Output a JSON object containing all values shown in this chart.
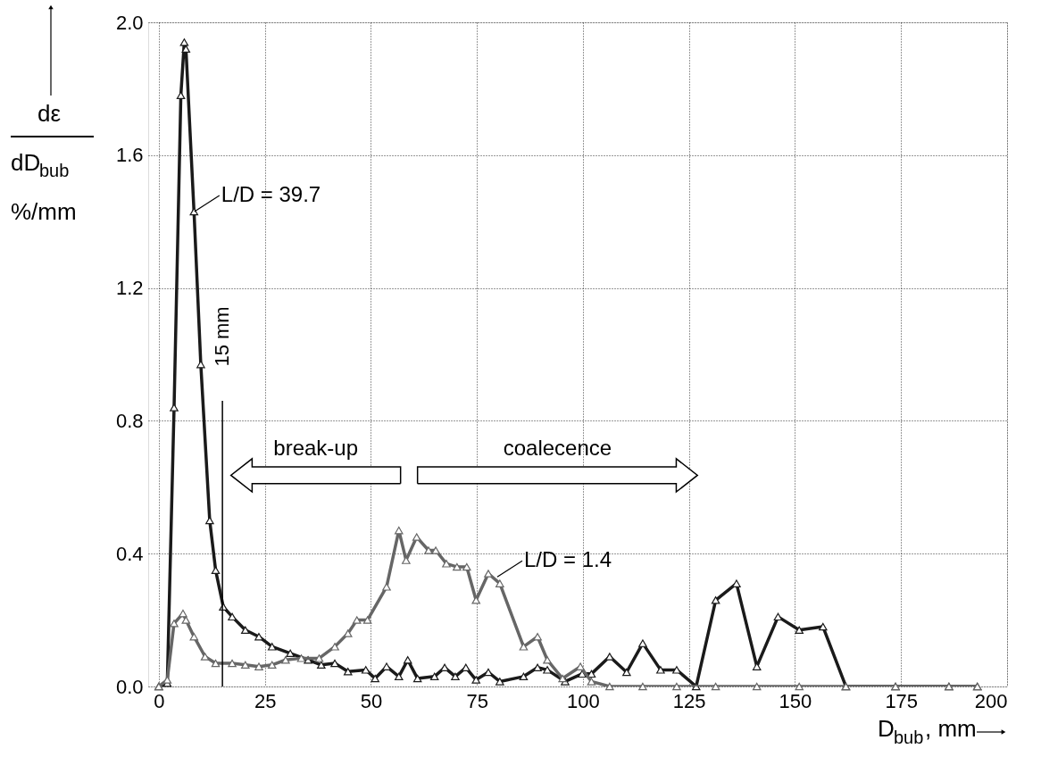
{
  "chart_data": {
    "type": "line",
    "xlabel": "D$_{bub}$, mm",
    "ylabel": "dε dD$_{bub}$ %/mm",
    "xlim": [
      -2.5,
      200
    ],
    "xticks": [
      0,
      25,
      50,
      75,
      100,
      125,
      150,
      175,
      200
    ],
    "ylim": [
      0,
      2.0
    ],
    "yticks": [
      {
        "value": 0,
        "label": "0.0"
      },
      {
        "value": 0.4,
        "label": "0.4"
      },
      {
        "value": 0.8,
        "label": "0.8"
      },
      {
        "value": 1.2,
        "label": "1.2"
      },
      {
        "value": 1.6,
        "label": "1.6"
      },
      {
        "value": 2.0,
        "label": "2.0"
      }
    ],
    "grid": true,
    "line_style": "solid",
    "series": [
      {
        "color": "#1a1a1a",
        "marker": "triangle",
        "x": [
          0,
          2,
          3.6,
          5.2,
          6,
          6.4,
          8.3,
          9.9,
          12,
          13.4,
          15.2,
          17.3,
          20.4,
          23.6,
          26.7,
          31,
          35.2,
          38.3,
          41.5,
          44.6,
          48.8,
          51,
          53.7,
          56.6,
          58.7,
          61,
          65,
          67.4,
          69.9,
          72.4,
          74.8,
          77.7,
          80.4,
          86,
          89.3,
          91.6,
          95.8,
          99.8,
          102,
          106.3,
          110.3,
          114.1,
          118.3,
          122.1,
          126.7,
          131.3,
          136.2,
          141,
          146,
          151,
          156.6,
          162,
          173.7,
          186.3,
          193
        ],
        "values": [
          0,
          0.01,
          0.84,
          1.78,
          1.94,
          1.92,
          1.43,
          0.97,
          0.5,
          0.35,
          0.24,
          0.21,
          0.17,
          0.15,
          0.12,
          0.1,
          0.08,
          0.065,
          0.07,
          0.045,
          0.05,
          0.024,
          0.06,
          0.03,
          0.08,
          0.024,
          0.03,
          0.057,
          0.03,
          0.057,
          0.02,
          0.043,
          0.015,
          0.03,
          0.057,
          0.05,
          0.015,
          0.038,
          0.038,
          0.09,
          0.043,
          0.13,
          0.05,
          0.05,
          0,
          0.26,
          0.31,
          0.06,
          0.21,
          0.17,
          0.18,
          0,
          0,
          0,
          0
        ]
      },
      {
        "color": "#666666",
        "marker": "triangle",
        "x": [
          0,
          2,
          3.6,
          5.7,
          6.4,
          8.3,
          10.9,
          13.4,
          17.3,
          20.4,
          23.6,
          26.7,
          29.9,
          33.6,
          37.8,
          41.5,
          44.6,
          46.7,
          49.2,
          53.7,
          56.6,
          58.3,
          60.8,
          63.6,
          65.3,
          67.8,
          70.3,
          72.6,
          74.8,
          77.7,
          80.4,
          86,
          89.3,
          91.6,
          95.2,
          99.4,
          102,
          106.3,
          114.1,
          122.1,
          131.3,
          141,
          151,
          162,
          173.7,
          186.3,
          193
        ],
        "values": [
          0,
          0.02,
          0.19,
          0.22,
          0.2,
          0.15,
          0.09,
          0.07,
          0.07,
          0.065,
          0.06,
          0.065,
          0.08,
          0.085,
          0.085,
          0.12,
          0.16,
          0.2,
          0.2,
          0.3,
          0.47,
          0.38,
          0.45,
          0.41,
          0.41,
          0.37,
          0.36,
          0.36,
          0.26,
          0.34,
          0.31,
          0.12,
          0.15,
          0.08,
          0.024,
          0.06,
          0.015,
          0,
          0,
          0,
          0,
          0,
          0,
          0,
          0,
          0,
          0
        ]
      }
    ],
    "annotations": [
      {
        "text": "L/D = 39.7",
        "x": 8.4,
        "y": 1.43
      },
      {
        "text": "L/D = 1.4",
        "x": 79.8,
        "y": 0.33
      },
      "break-up",
      "coalecence"
    ],
    "ref_lines": [
      {
        "axis": "x",
        "value": 15,
        "label": "15 mm",
        "color": "#000000",
        "line_style": "solid"
      }
    ]
  }
}
